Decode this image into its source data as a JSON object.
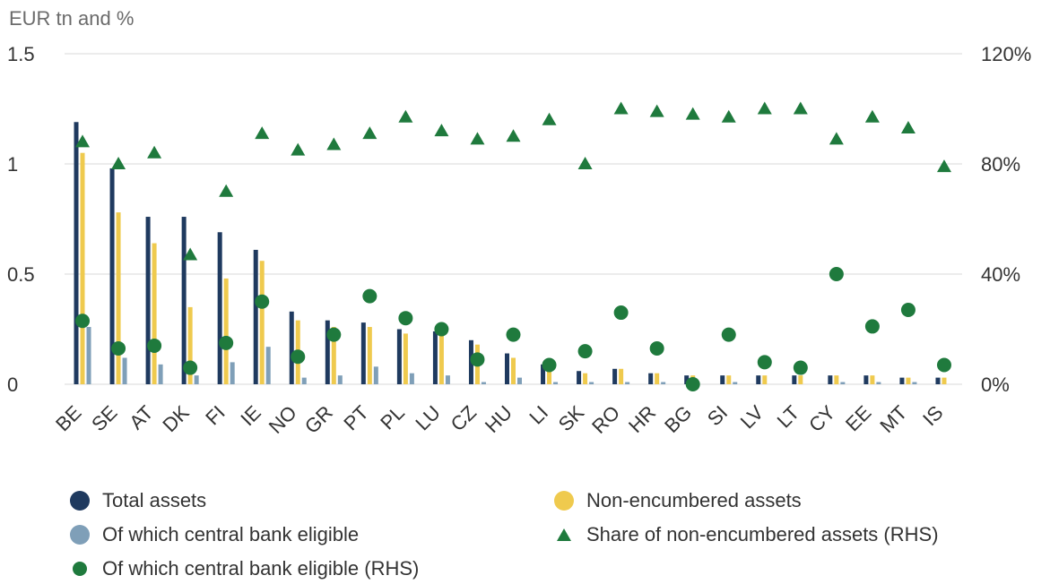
{
  "chart_data": {
    "type": "bar",
    "unit_label": "EUR tn and %",
    "categories": [
      "BE",
      "SE",
      "AT",
      "DK",
      "FI",
      "IE",
      "NO",
      "GR",
      "PT",
      "PL",
      "LU",
      "CZ",
      "HU",
      "LI",
      "SK",
      "RO",
      "HR",
      "BG",
      "SI",
      "LV",
      "LT",
      "CY",
      "EE",
      "MT",
      "IS"
    ],
    "y_left": {
      "min": 0,
      "max": 1.5,
      "ticks": [
        0,
        0.5,
        1,
        1.5
      ],
      "tick_labels": [
        "0",
        "0.5",
        "1",
        "1.5"
      ]
    },
    "y_right": {
      "min": 0,
      "max": 120,
      "ticks": [
        0,
        40,
        80,
        120
      ],
      "tick_labels": [
        "0%",
        "40%",
        "80%",
        "120%"
      ]
    },
    "grid": true,
    "legend_position": "bottom",
    "series": [
      {
        "name": "Total assets",
        "type": "bar",
        "axis": "left",
        "color": "#1f3a5f",
        "values": [
          1.19,
          0.98,
          0.76,
          0.76,
          0.69,
          0.61,
          0.33,
          0.29,
          0.28,
          0.25,
          0.24,
          0.2,
          0.14,
          0.09,
          0.06,
          0.07,
          0.05,
          0.04,
          0.04,
          0.04,
          0.04,
          0.04,
          0.04,
          0.03,
          0.03
        ]
      },
      {
        "name": "Non-encumbered assets",
        "type": "bar",
        "axis": "left",
        "color": "#efca4e",
        "values": [
          1.05,
          0.78,
          0.64,
          0.35,
          0.48,
          0.56,
          0.29,
          0.26,
          0.26,
          0.23,
          0.22,
          0.18,
          0.12,
          0.08,
          0.05,
          0.07,
          0.05,
          0.04,
          0.04,
          0.04,
          0.04,
          0.04,
          0.04,
          0.03,
          0.03
        ]
      },
      {
        "name": "Of which central bank eligible",
        "type": "bar",
        "axis": "left",
        "color": "#7f9fb8",
        "values": [
          0.26,
          0.12,
          0.09,
          0.04,
          0.1,
          0.17,
          0.03,
          0.04,
          0.08,
          0.05,
          0.04,
          0.01,
          0.03,
          0.01,
          0.01,
          0.01,
          0.01,
          0.0,
          0.01,
          0.0,
          0.0,
          0.01,
          0.01,
          0.01,
          0.0
        ]
      },
      {
        "name": "Share of non-encumbered assets (RHS)",
        "type": "scatter",
        "marker": "triangle",
        "axis": "right",
        "color": "#1f7a3d",
        "values": [
          88,
          80,
          84,
          47,
          70,
          91,
          85,
          87,
          91,
          97,
          92,
          89,
          90,
          96,
          80,
          100,
          99,
          98,
          97,
          100,
          100,
          89,
          97,
          93,
          79
        ]
      },
      {
        "name": "Of which central bank eligible (RHS)",
        "type": "scatter",
        "marker": "circle",
        "axis": "right",
        "color": "#1f7a3d",
        "values": [
          23,
          13,
          14,
          6,
          15,
          30,
          10,
          18,
          32,
          24,
          20,
          9,
          18,
          7,
          12,
          26,
          13,
          0,
          18,
          8,
          6,
          40,
          21,
          27,
          7
        ]
      }
    ]
  }
}
